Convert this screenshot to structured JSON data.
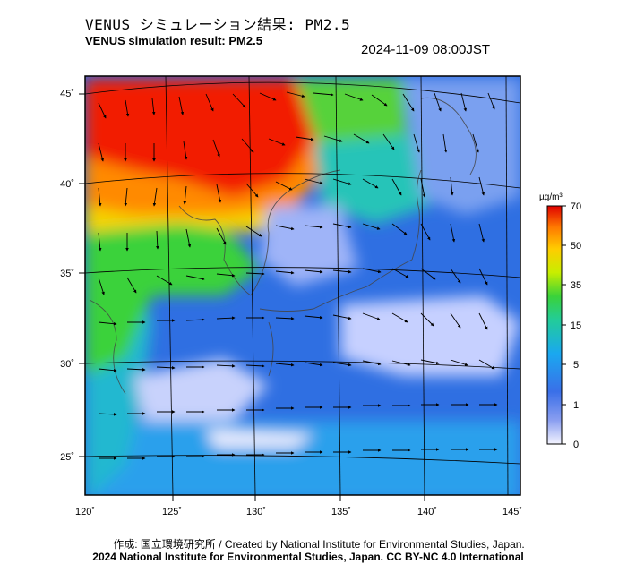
{
  "header": {
    "title_ja": "VENUS シミュレーション結果: PM2.5",
    "title_en": "VENUS simulation result: PM2.5",
    "timestamp": "2024-11-09 08:00JST"
  },
  "map": {
    "lon_ticks": [
      "120˚",
      "125˚",
      "130˚",
      "135˚",
      "140˚",
      "145˚"
    ],
    "lat_ticks": [
      "45˚",
      "40˚",
      "35˚",
      "30˚",
      "25˚"
    ]
  },
  "colorbar": {
    "unit": "µg/m³",
    "tick_labels": [
      "70",
      "50",
      "35",
      "15",
      "5",
      "1",
      "0"
    ],
    "colors": [
      "#e8e8ff",
      "#3a5fe0",
      "#1ea0f0",
      "#24c8a0",
      "#32d232",
      "#c8f000",
      "#ffd000",
      "#ff8c00",
      "#ff2a00",
      "#e00000"
    ]
  },
  "footer": {
    "credit_created": "作成: 国立環境研究所 / Created by National Institute for Environmental Studies, Japan.",
    "license": "2024 National Institute for Environmental Studies, Japan. CC BY-NC 4.0 International"
  }
}
